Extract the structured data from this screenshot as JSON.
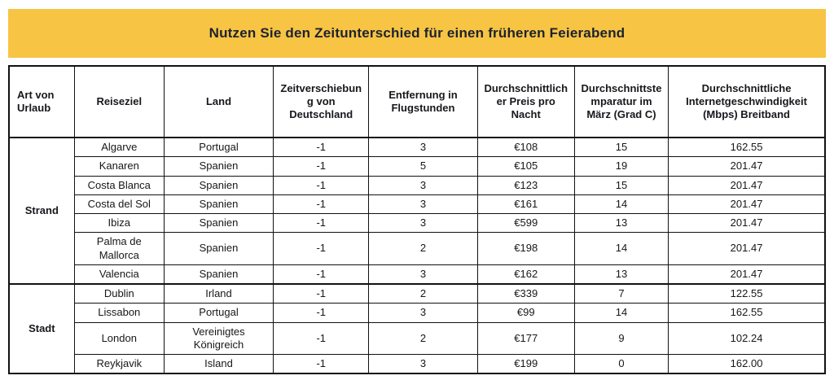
{
  "banner": {
    "title": "Nutzen Sie den Zeitunterschied für einen früheren Feierabend",
    "background": "#F7C443"
  },
  "colors": {
    "banner_yellow": "#F7C443",
    "text_dark": "#17171C",
    "border_black": "#111111"
  },
  "chart_data": {
    "type": "table",
    "title": "Nutzen Sie den Zeitunterschied für einen früheren Feierabend",
    "columns": [
      "Art von Urlaub",
      "Reiseziel",
      "Land",
      "Zeitverschiebung von Deutschland",
      "Entfernung in Flugstunden",
      "Durchschnittlicher Preis pro Nacht",
      "Durchschnittstemparatur im März (Grad C)",
      "Durchschnittliche Internetgeschwindigkeit (Mbps) Breitband"
    ],
    "groups": [
      {
        "label": "Strand",
        "rows": [
          [
            "Algarve",
            "Portugal",
            "-1",
            "3",
            "€108",
            "15",
            "162.55"
          ],
          [
            "Kanaren",
            "Spanien",
            "-1",
            "5",
            "€105",
            "19",
            "201.47"
          ],
          [
            "Costa Blanca",
            "Spanien",
            "-1",
            "3",
            "€123",
            "15",
            "201.47"
          ],
          [
            "Costa del Sol",
            "Spanien",
            "-1",
            "3",
            "€161",
            "14",
            "201.47"
          ],
          [
            "Ibiza",
            "Spanien",
            "-1",
            "3",
            "€599",
            "13",
            "201.47"
          ],
          [
            "Palma de Mallorca",
            "Spanien",
            "-1",
            "2",
            "€198",
            "14",
            "201.47"
          ],
          [
            "Valencia",
            "Spanien",
            "-1",
            "3",
            "€162",
            "13",
            "201.47"
          ]
        ]
      },
      {
        "label": "Stadt",
        "rows": [
          [
            "Dublin",
            "Irland",
            "-1",
            "2",
            "€339",
            "7",
            "122.55"
          ],
          [
            "Lissabon",
            "Portugal",
            "-1",
            "3",
            "€99",
            "14",
            "162.55"
          ],
          [
            "London",
            "Vereinigtes Königreich",
            "-1",
            "2",
            "€177",
            "9",
            "102.24"
          ],
          [
            "Reykjavik",
            "Island",
            "-1",
            "3",
            "€199",
            "0",
            "162.00"
          ]
        ]
      }
    ]
  }
}
